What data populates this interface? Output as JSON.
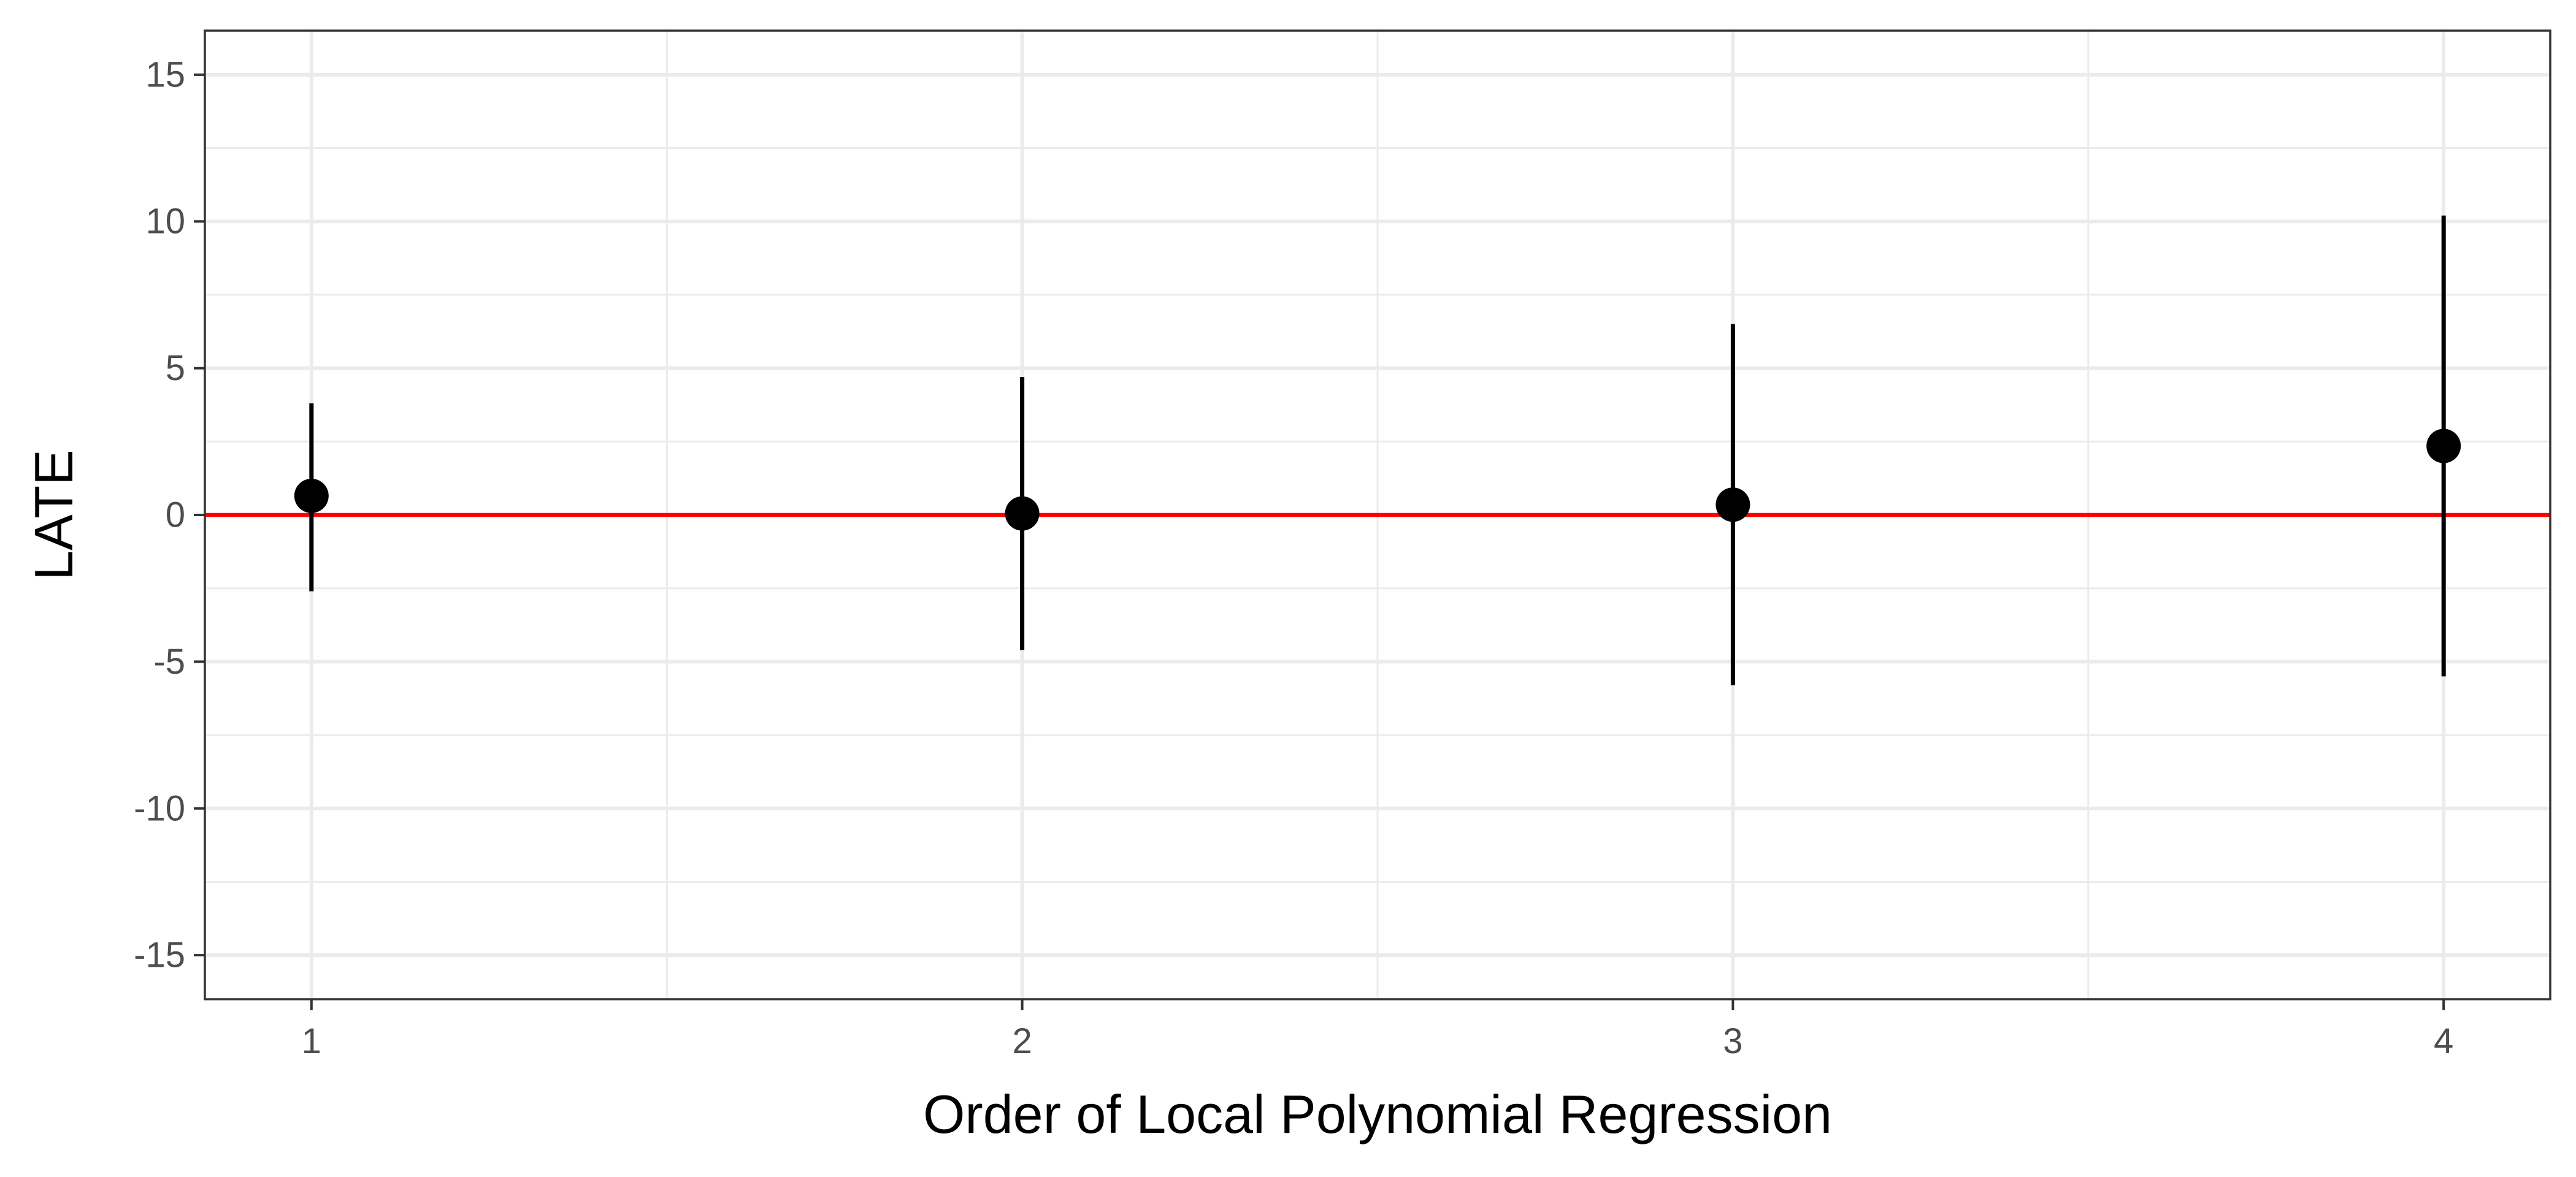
{
  "chart_data": {
    "type": "scatter",
    "title": "",
    "xlabel": "Order of Local Polynomial Regression",
    "ylabel": "LATE",
    "x": [
      1,
      2,
      3,
      4
    ],
    "x_tick_labels": [
      "1",
      "2",
      "3",
      "4"
    ],
    "y_tick_labels": [
      "-15",
      "-10",
      "-5",
      "0",
      "5",
      "10",
      "15"
    ],
    "y_ticks": [
      -15,
      -10,
      -5,
      0,
      5,
      10,
      15
    ],
    "xlim": [
      0.85,
      4.15
    ],
    "ylim": [
      -16.5,
      16.5
    ],
    "series": [
      {
        "estimate": [
          0.65,
          0.05,
          0.35,
          2.35
        ],
        "ci_lower": [
          -2.6,
          -4.6,
          -5.8,
          -5.5
        ],
        "ci_upper": [
          3.8,
          4.7,
          6.5,
          10.2
        ]
      }
    ],
    "reference_line": {
      "y": 0,
      "color": "#ff0000"
    },
    "grid": true,
    "legend": "none",
    "colors": {
      "points": "#000000",
      "errorbars": "#000000",
      "grid": "#ebebeb",
      "panel_border": "#333333"
    }
  }
}
